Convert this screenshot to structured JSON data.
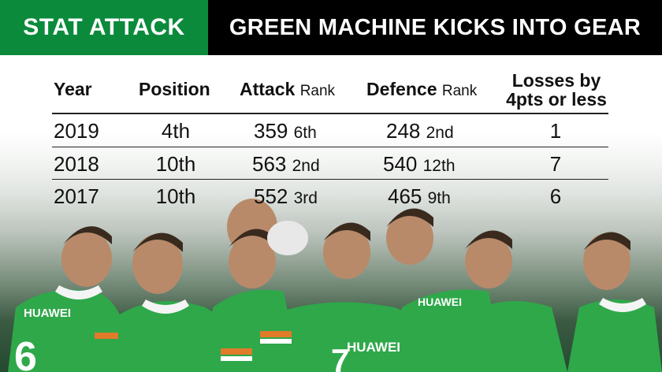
{
  "banner": {
    "left_label": "STAT ATTACK",
    "right_label": "GREEN MACHINE KICKS INTO GEAR",
    "left_color": "#0b8a3c",
    "right_color": "#000000"
  },
  "table": {
    "headers": {
      "year": "Year",
      "position": "Position",
      "attack": "Attack",
      "attack_sub": "Rank",
      "defence": "Defence",
      "defence_sub": "Rank",
      "losses_line1": "Losses by",
      "losses_line2": "4pts or less"
    },
    "rows": [
      {
        "year": "2019",
        "position": "4th",
        "attack": "359",
        "attack_rank": "6th",
        "defence": "248",
        "defence_rank": "2nd",
        "losses": "1"
      },
      {
        "year": "2018",
        "position": "10th",
        "attack": "563",
        "attack_rank": "2nd",
        "defence": "540",
        "defence_rank": "12th",
        "losses": "7"
      },
      {
        "year": "2017",
        "position": "10th",
        "attack": "552",
        "attack_rank": "3rd",
        "defence": "465",
        "defence_rank": "9th",
        "losses": "6"
      }
    ]
  },
  "photo": {
    "jersey_text": [
      "HUAWEI",
      "HUAWEI",
      "HUAWEI"
    ],
    "jersey_numbers": [
      "6",
      "7"
    ]
  }
}
